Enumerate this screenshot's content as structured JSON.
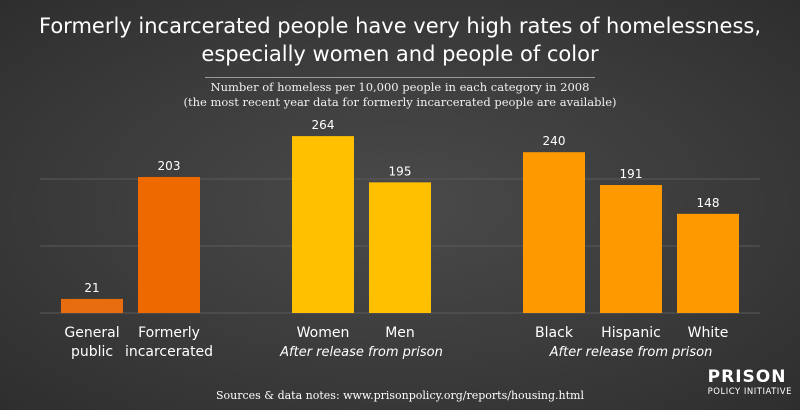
{
  "title_line1": "Formerly incarcerated people have very high rates of homelessness,",
  "title_line2": "especially women and people of color",
  "subtitle_line1": "Number of homeless per 10,000 people in each category in 2008",
  "subtitle_line2": "(the most recent year data for formerly incarcerated people are available)",
  "footer": "Sources & data notes: www.prisonpolicy.org/reports/housing.html",
  "logo": {
    "top": "PRISON",
    "bottom": "POLICY INITIATIVE"
  },
  "colors": {
    "general": "#e86d0e",
    "formerly": "#ee6a00",
    "gender": "#ffc000",
    "race": "#ff9900",
    "grid": "#5a5a5a"
  },
  "chart_data": {
    "type": "bar",
    "ylim": [
      0,
      300
    ],
    "grid": true,
    "categories": [
      "General public",
      "Formerly incarcerated",
      "Women",
      "Men",
      "Black",
      "Hispanic",
      "White"
    ],
    "values": [
      21,
      203,
      264,
      195,
      240,
      191,
      148
    ],
    "category_lines": [
      [
        "General",
        "public"
      ],
      [
        "Formerly",
        "incarcerated"
      ],
      [
        "Women"
      ],
      [
        "Men"
      ],
      [
        "Black"
      ],
      [
        "Hispanic"
      ],
      [
        "White"
      ]
    ],
    "group_labels": [
      "After release from prison",
      "After release from prison"
    ]
  }
}
